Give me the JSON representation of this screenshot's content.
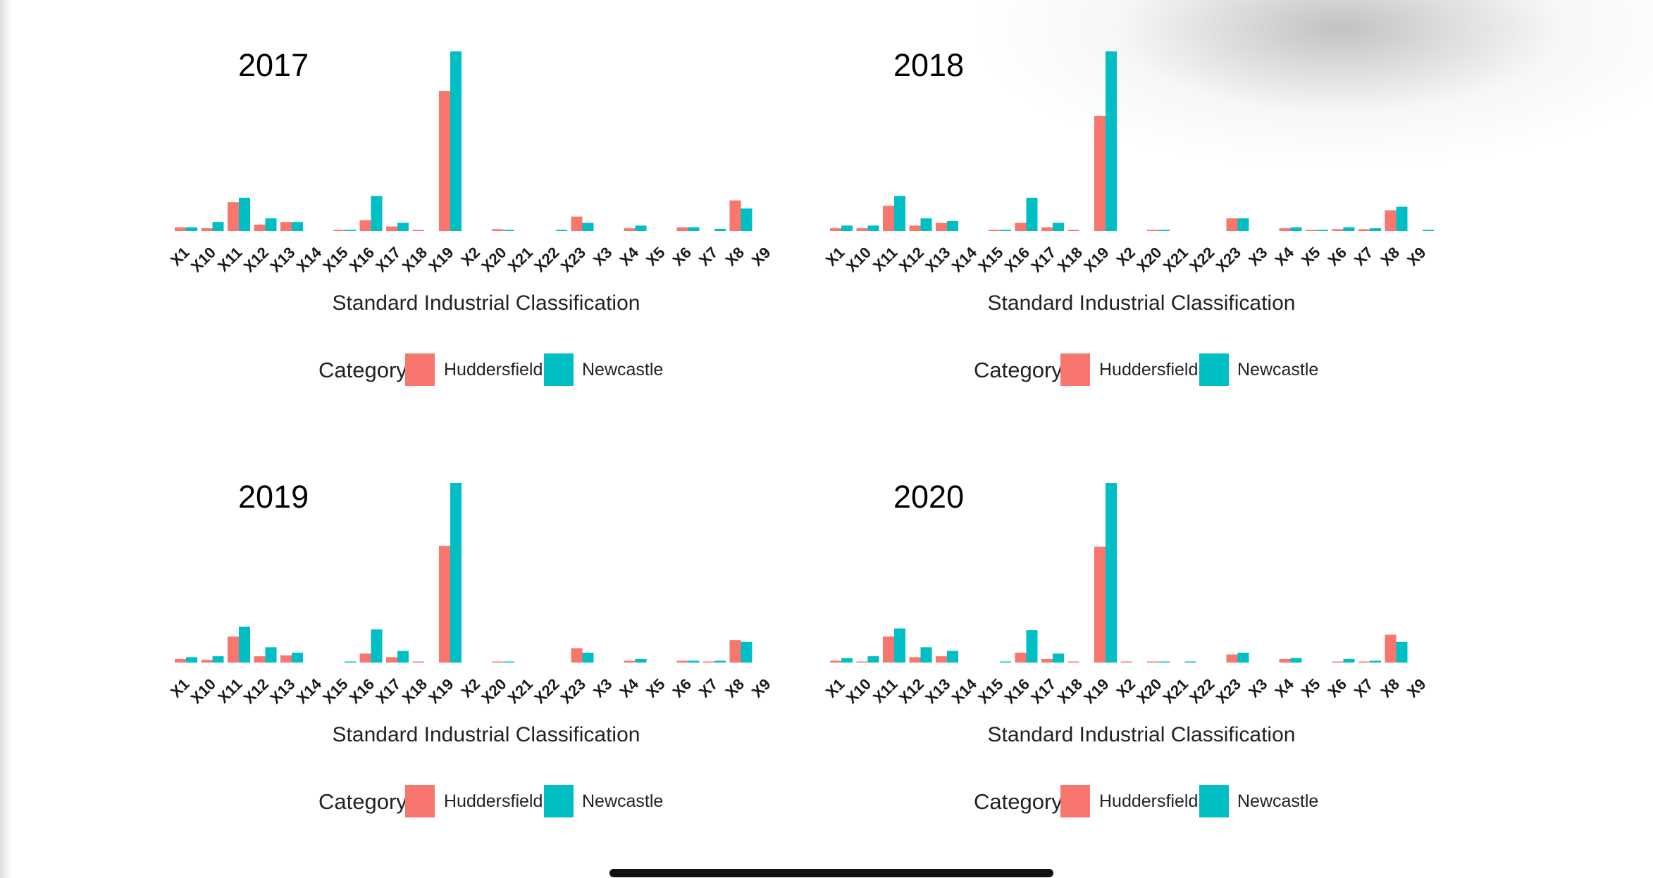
{
  "colors": {
    "huddersfield": "#F8766D",
    "newcastle": "#00BFC4"
  },
  "chart_data": [
    {
      "type": "bar",
      "title": "2017",
      "xlabel": "Standard Industrial Classification",
      "ylabel": "",
      "ylim": [
        0,
        100
      ],
      "grid": false,
      "legend": {
        "title": "Category",
        "position": "bottom"
      },
      "categories": [
        "X1",
        "X10",
        "X11",
        "X12",
        "X13",
        "X14",
        "X15",
        "X16",
        "X17",
        "X18",
        "X19",
        "X2",
        "X20",
        "X21",
        "X22",
        "X23",
        "X3",
        "X4",
        "X5",
        "X6",
        "X7",
        "X8",
        "X9"
      ],
      "series": [
        {
          "name": "Huddersfield",
          "values": [
            2,
            1.5,
            16,
            3.5,
            5,
            0,
            0.4,
            6,
            2.5,
            0.3,
            78,
            0,
            1,
            0,
            0,
            8,
            0,
            1.5,
            0,
            2,
            0,
            17,
            0
          ]
        },
        {
          "name": "Newcastle",
          "values": [
            2,
            5,
            18.5,
            7,
            5,
            0,
            0.4,
            19.5,
            4.5,
            0,
            100,
            0,
            0.5,
            0,
            0.5,
            4.5,
            0,
            3,
            0,
            2,
            1.2,
            12.5,
            0
          ]
        }
      ]
    },
    {
      "type": "bar",
      "title": "2018",
      "xlabel": "Standard Industrial Classification",
      "ylabel": "",
      "ylim": [
        0,
        100
      ],
      "grid": false,
      "legend": {
        "title": "Category",
        "position": "bottom"
      },
      "categories": [
        "X1",
        "X10",
        "X11",
        "X12",
        "X13",
        "X14",
        "X15",
        "X16",
        "X17",
        "X18",
        "X19",
        "X2",
        "X20",
        "X21",
        "X22",
        "X23",
        "X3",
        "X4",
        "X5",
        "X6",
        "X7",
        "X8",
        "X9"
      ],
      "series": [
        {
          "name": "Huddersfield",
          "values": [
            1.5,
            1.5,
            14,
            3,
            4.5,
            0,
            0.5,
            4.5,
            2,
            0.5,
            64,
            0,
            0.5,
            0,
            0,
            7,
            0,
            1.5,
            0.5,
            1,
            1,
            11.5,
            0
          ]
        },
        {
          "name": "Newcastle",
          "values": [
            3,
            3,
            19.5,
            7,
            5.5,
            0,
            0.5,
            18.5,
            4.5,
            0,
            100,
            0,
            0.5,
            0,
            0,
            7,
            0,
            2,
            0.5,
            2,
            1.5,
            13.5,
            0.5
          ]
        }
      ]
    },
    {
      "type": "bar",
      "title": "2019",
      "xlabel": "Standard Industrial Classification",
      "ylabel": "",
      "ylim": [
        0,
        100
      ],
      "grid": false,
      "legend": {
        "title": "Category",
        "position": "bottom"
      },
      "categories": [
        "X1",
        "X10",
        "X11",
        "X12",
        "X13",
        "X14",
        "X15",
        "X16",
        "X17",
        "X18",
        "X19",
        "X2",
        "X20",
        "X21",
        "X22",
        "X23",
        "X3",
        "X4",
        "X5",
        "X6",
        "X7",
        "X8",
        "X9"
      ],
      "series": [
        {
          "name": "Huddersfield",
          "values": [
            2,
            1.5,
            14.5,
            3.5,
            4,
            0,
            0,
            5,
            3,
            0.5,
            65,
            0,
            0.5,
            0,
            0,
            8,
            0,
            1,
            0,
            1,
            0.5,
            12.5,
            0
          ]
        },
        {
          "name": "Newcastle",
          "values": [
            3,
            3.5,
            20,
            8.5,
            5.5,
            0,
            0.5,
            18.5,
            6.5,
            0,
            100,
            0,
            0.5,
            0,
            0,
            5.5,
            0,
            2,
            0,
            1,
            1,
            11.5,
            0
          ]
        }
      ]
    },
    {
      "type": "bar",
      "title": "2020",
      "xlabel": "Standard Industrial Classification",
      "ylabel": "",
      "ylim": [
        0,
        100
      ],
      "grid": false,
      "legend": {
        "title": "Category",
        "position": "bottom"
      },
      "categories": [
        "X1",
        "X10",
        "X11",
        "X12",
        "X13",
        "X14",
        "X15",
        "X16",
        "X17",
        "X18",
        "X19",
        "X2",
        "X20",
        "X21",
        "X22",
        "X23",
        "X3",
        "X4",
        "X5",
        "X6",
        "X7",
        "X8",
        "X9"
      ],
      "series": [
        {
          "name": "Huddersfield",
          "values": [
            1,
            0.5,
            14.5,
            3,
            3.5,
            0,
            0,
            5.5,
            2,
            0.5,
            64.5,
            0.5,
            0.5,
            0,
            0,
            4.5,
            0,
            2,
            0,
            0.5,
            0.5,
            15.5,
            0
          ]
        },
        {
          "name": "Newcastle",
          "values": [
            2.5,
            3.5,
            19,
            8.5,
            6.5,
            0,
            0.5,
            18,
            5,
            0,
            100,
            0,
            0.5,
            0.5,
            0,
            5.5,
            0,
            2.5,
            0,
            2,
            1,
            11.5,
            0
          ]
        }
      ]
    }
  ]
}
